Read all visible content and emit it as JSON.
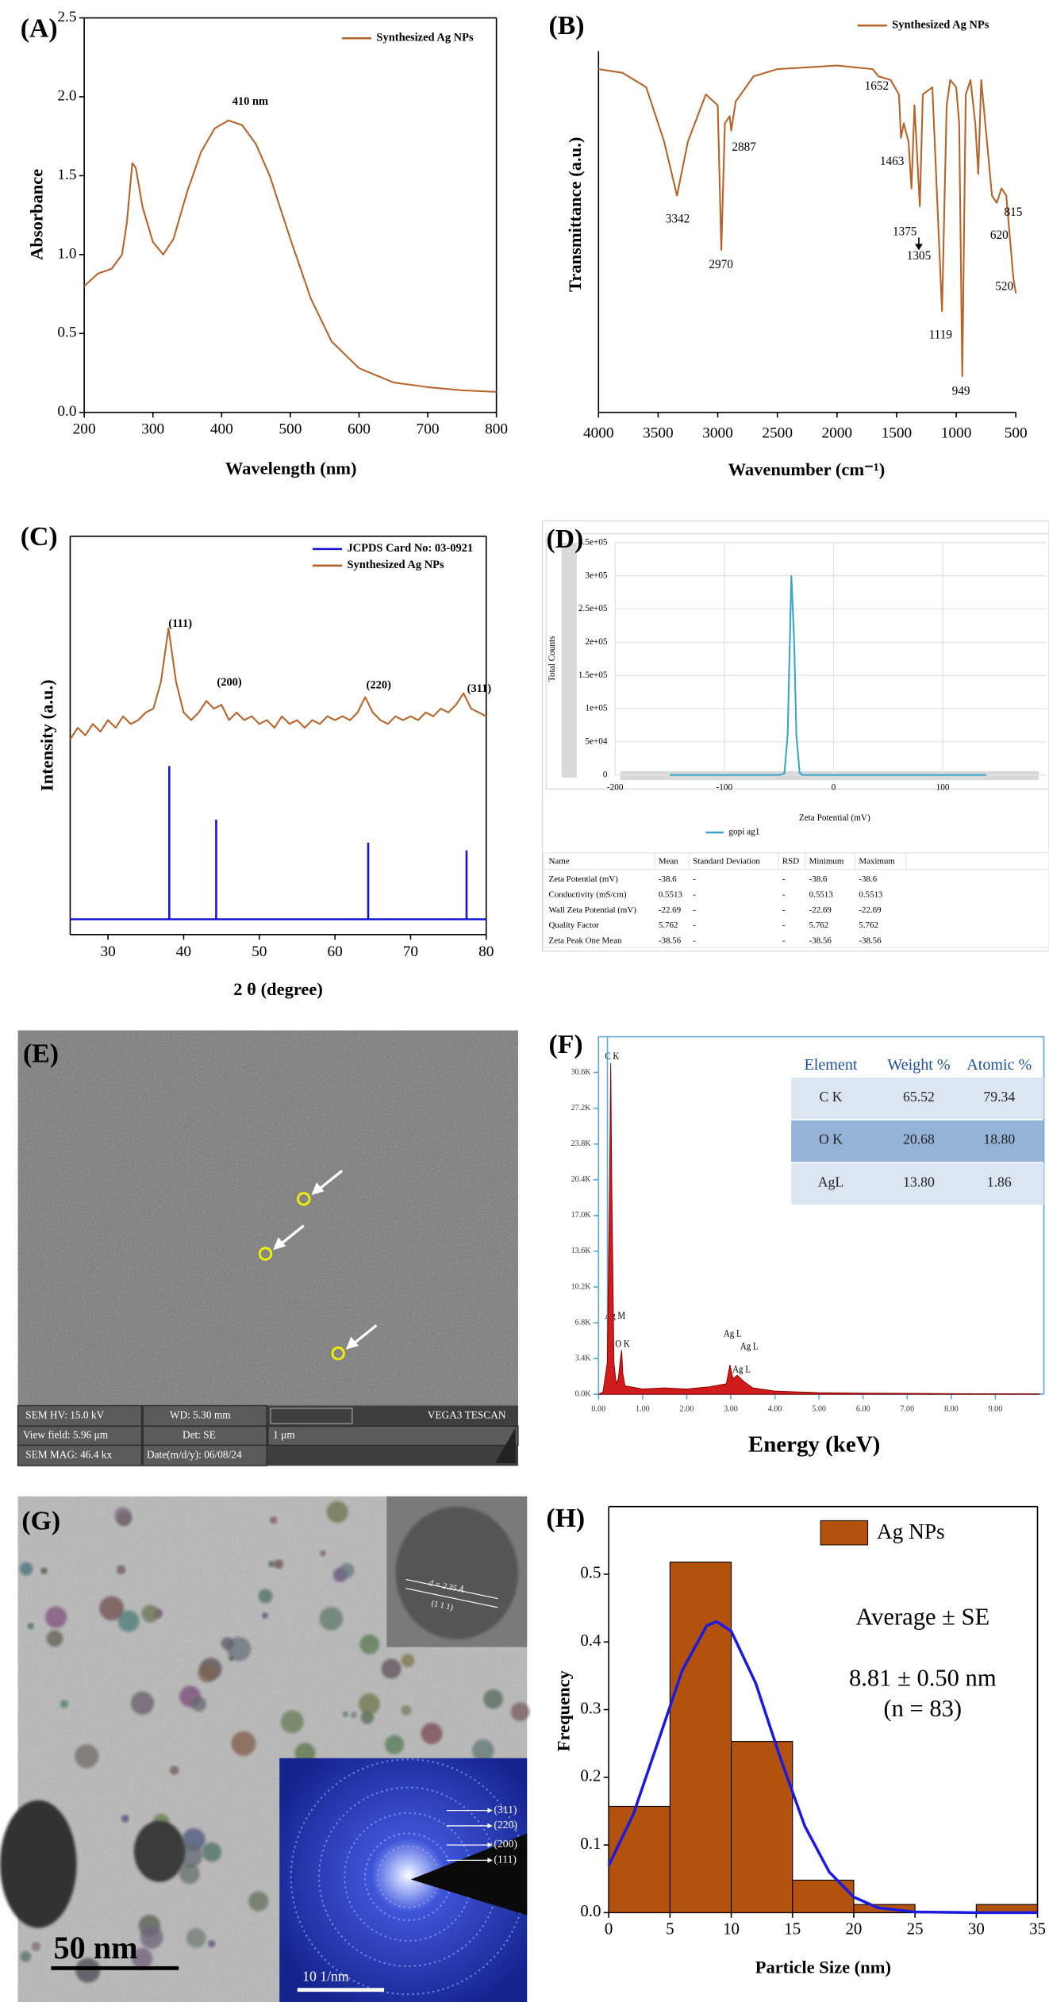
{
  "chart_data": [
    {
      "type": "line",
      "panel_label": "(A)",
      "xlabel": "Wavelength (nm)",
      "ylabel": "Absorbance",
      "annotations": [
        "410 nm"
      ],
      "x": [
        200,
        220,
        240,
        255,
        262,
        270,
        275,
        285,
        300,
        315,
        330,
        350,
        370,
        390,
        410,
        430,
        450,
        470,
        500,
        530,
        560,
        600,
        650,
        700,
        750,
        800
      ],
      "series": [
        {
          "name": "Synthesized Ag NPs",
          "color": "#b5652b",
          "values": [
            0.8,
            0.88,
            0.91,
            1.0,
            1.2,
            1.58,
            1.55,
            1.3,
            1.08,
            1.0,
            1.1,
            1.4,
            1.65,
            1.8,
            1.85,
            1.82,
            1.7,
            1.5,
            1.1,
            0.72,
            0.45,
            0.28,
            0.19,
            0.16,
            0.14,
            0.13
          ]
        }
      ],
      "xlim": [
        200,
        800
      ],
      "xticks": [
        200,
        300,
        400,
        500,
        600,
        700,
        800
      ],
      "ylim": [
        0,
        2.5
      ],
      "yticks": [
        {
          "value": 0,
          "label": "0.0"
        },
        0.5,
        {
          "value": 1,
          "label": "1.0"
        },
        1.5,
        {
          "value": 2,
          "label": "2.0"
        },
        2.5
      ]
    },
    {
      "type": "line",
      "panel_label": "(B)",
      "xlabel": "Wavenumber (cm⁻¹)",
      "ylabel": "Transmittance (a.u.)",
      "peaks": [
        3342,
        2970,
        2887,
        1652,
        1463,
        1375,
        1305,
        1119,
        949,
        815,
        620,
        520
      ],
      "x": [
        4000,
        3800,
        3600,
        3450,
        3342,
        3250,
        3100,
        3000,
        2970,
        2940,
        2900,
        2887,
        2850,
        2700,
        2500,
        2000,
        1700,
        1652,
        1550,
        1480,
        1463,
        1440,
        1400,
        1375,
        1350,
        1305,
        1280,
        1200,
        1119,
        1080,
        1050,
        1000,
        975,
        949,
        920,
        880,
        840,
        815,
        790,
        700,
        660,
        620,
        580,
        520,
        500
      ],
      "series": [
        {
          "name": "Synthesized Ag NPs",
          "color": "#b5652b",
          "values": [
            95,
            94,
            90,
            75,
            60,
            75,
            88,
            85,
            45,
            80,
            82,
            78,
            86,
            93,
            95,
            96,
            95,
            93,
            92,
            88,
            76,
            80,
            75,
            62,
            85,
            57,
            88,
            90,
            28,
            85,
            92,
            90,
            80,
            10,
            88,
            92,
            80,
            66,
            92,
            60,
            58,
            62,
            60,
            37,
            33
          ]
        }
      ],
      "xlim": [
        4000,
        500
      ],
      "xticks": [
        4000,
        3500,
        3000,
        2500,
        2000,
        1500,
        1000,
        500
      ],
      "ylim": [
        0,
        100
      ]
    },
    {
      "type": "line",
      "panel_label": "(C)",
      "xlabel": "2 θ (degree)",
      "ylabel": "Intensity (a.u.)",
      "annotations": [
        "(111)",
        "(200)",
        "(220)",
        "(311)"
      ],
      "series": [
        {
          "name": "JCPDS Card No: 03-0921",
          "color": "#1414d6",
          "mark": "stick",
          "x": [
            38.1,
            44.3,
            64.4,
            77.4
          ],
          "values": [
            40,
            26,
            20,
            18
          ]
        },
        {
          "name": "Synthesized Ag NPs",
          "color": "#b5652b",
          "x": [
            25,
            26,
            27,
            28,
            29,
            30,
            31,
            32,
            33,
            34,
            35,
            36,
            37,
            38,
            39,
            40,
            41,
            42,
            43,
            44,
            45,
            46,
            47,
            48,
            49,
            50,
            51,
            52,
            53,
            54,
            55,
            56,
            57,
            58,
            59,
            60,
            61,
            62,
            63,
            64,
            65,
            66,
            67,
            68,
            69,
            70,
            71,
            72,
            73,
            74,
            75,
            76,
            77,
            78,
            79,
            80
          ],
          "values": [
            47,
            50,
            48,
            51,
            49,
            52,
            50,
            53,
            51,
            52,
            54,
            55,
            62,
            76,
            62,
            54,
            52,
            54,
            57,
            55,
            56,
            52,
            54,
            52,
            53,
            51,
            52,
            50,
            53,
            51,
            52,
            50,
            52,
            51,
            53,
            52,
            53,
            52,
            54,
            58,
            54,
            52,
            51,
            53,
            52,
            53,
            52,
            54,
            53,
            55,
            54,
            56,
            59,
            55,
            54,
            53
          ]
        }
      ],
      "xlim": [
        25,
        80
      ],
      "xticks": [
        30,
        40,
        50,
        60,
        70,
        80
      ],
      "ylim": [
        -4,
        100
      ]
    },
    {
      "type": "line",
      "panel_label": "(D)",
      "xlabel": "Zeta Potential (mV)",
      "ylabel": "Total Counts",
      "grid": true,
      "x": [
        -150,
        -50,
        -45,
        -42,
        -40,
        -38.6,
        -36,
        -34,
        -31,
        -28,
        140
      ],
      "series": [
        {
          "name": "gopi ag1",
          "color": "#3aa6c8",
          "values": [
            0,
            0,
            2000,
            60000,
            200000,
            300000,
            200000,
            60000,
            3000,
            0,
            0
          ]
        }
      ],
      "xlim": [
        -200,
        195
      ],
      "xticks": [
        -200,
        -100,
        0,
        100
      ],
      "ylim": [
        0,
        350000
      ],
      "yticks": [
        0,
        {
          "value": 50000,
          "label": "5e+04"
        },
        {
          "value": 100000,
          "label": "1e+05"
        },
        {
          "value": 150000,
          "label": "1.5e+05"
        },
        {
          "value": 200000,
          "label": "2e+05"
        },
        {
          "value": 250000,
          "label": "2.5e+05"
        },
        {
          "value": 300000,
          "label": "3e+05"
        },
        {
          "value": 350000,
          "label": "3.5e+05"
        }
      ],
      "table": {
        "columns": [
          "Name",
          "Mean",
          "Standard Deviation",
          "RSD",
          "Minimum",
          "Maximum"
        ],
        "rows": [
          [
            "Zeta Potential (mV)",
            "-38.6",
            "-",
            "-",
            "-38.6",
            "-38.6"
          ],
          [
            "Conductivity (mS/cm)",
            "0.5513",
            "-",
            "-",
            "0.5513",
            "0.5513"
          ],
          [
            "Wall Zeta Potential (mV)",
            "-22.69",
            "-",
            "-",
            "-22.69",
            "-22.69"
          ],
          [
            "Quality Factor",
            "5.762",
            "-",
            "-",
            "5.762",
            "5.762"
          ],
          [
            "Zeta Peak One Mean",
            "-38.56",
            "-",
            "-",
            "-38.56",
            "-38.56"
          ]
        ]
      }
    },
    {
      "type": "area",
      "panel_label": "(F)",
      "xlabel": "Energy (keV)",
      "annotations": [
        "C K",
        "Ag M",
        "O K",
        "Ag L",
        "Ag L",
        "Ag L"
      ],
      "x": [
        0,
        0.1,
        0.2,
        0.25,
        0.277,
        0.3,
        0.35,
        0.4,
        0.45,
        0.5,
        0.525,
        0.55,
        0.6,
        1,
        1.5,
        2,
        2.5,
        2.9,
        2.98,
        3.05,
        3.15,
        3.3,
        3.5,
        4,
        5,
        6,
        7,
        8,
        9,
        10
      ],
      "series": [
        {
          "color": "#d01c1c",
          "values": [
            0,
            200,
            3000,
            20000,
            31500,
            20000,
            3000,
            1000,
            1500,
            3500,
            4200,
            2000,
            800,
            500,
            600,
            500,
            700,
            1000,
            2800,
            1500,
            1800,
            1200,
            600,
            300,
            150,
            100,
            80,
            60,
            50,
            40
          ]
        }
      ],
      "xlim": [
        0,
        10.1
      ],
      "xticks": [
        {
          "value": 0,
          "label": "0.00"
        },
        {
          "value": 1,
          "label": "1.00"
        },
        {
          "value": 2,
          "label": "2.00"
        },
        {
          "value": 3,
          "label": "3.00"
        },
        {
          "value": 4,
          "label": "4.00"
        },
        {
          "value": 5,
          "label": "5.00"
        },
        {
          "value": 6,
          "label": "6.00"
        },
        {
          "value": 7,
          "label": "7.00"
        },
        {
          "value": 8,
          "label": "8.00"
        },
        {
          "value": 9,
          "label": "9.00"
        }
      ],
      "ylim": [
        0,
        34000
      ],
      "yticks": [
        {
          "value": 0,
          "label": "0.0K"
        },
        {
          "value": 3400,
          "label": "3.4K"
        },
        {
          "value": 6800,
          "label": "6.8K"
        },
        {
          "value": 10200,
          "label": "10.2K"
        },
        {
          "value": 13600,
          "label": "13.6K"
        },
        {
          "value": 17000,
          "label": "17.0K"
        },
        {
          "value": 20400,
          "label": "20.4K"
        },
        {
          "value": 23800,
          "label": "23.8K"
        },
        {
          "value": 27200,
          "label": "27.2K"
        },
        {
          "value": 30600,
          "label": "30.6K"
        }
      ],
      "table": {
        "columns": [
          "Element",
          "Weight %",
          "Atomic %"
        ],
        "rows": [
          [
            "C K",
            "65.52",
            "79.34"
          ],
          [
            "O K",
            "20.68",
            "18.80"
          ],
          [
            "AgL",
            "13.80",
            "1.86"
          ]
        ]
      }
    },
    {
      "type": "histogram",
      "panel_label": "(H)",
      "xlabel": "Particle Size (nm)",
      "ylabel": "Frequency",
      "name": "Ag NPs",
      "color": "#b3520d",
      "annotations": [
        "Average ± SE",
        "8.81 ± 0.50 nm",
        "(n = 83)"
      ],
      "bins": [
        0,
        5,
        10,
        15,
        20,
        25,
        30,
        35
      ],
      "values": [
        0.157,
        0.518,
        0.253,
        0.048,
        0.012,
        0,
        0.012
      ],
      "fit": {
        "color": "#1a1ae0",
        "x": [
          0,
          2,
          4,
          6,
          8,
          8.81,
          10,
          12,
          14,
          16,
          18,
          20,
          22,
          25,
          30,
          35
        ],
        "values": [
          0.07,
          0.145,
          0.251,
          0.358,
          0.424,
          0.43,
          0.416,
          0.339,
          0.229,
          0.128,
          0.06,
          0.023,
          0.007,
          0.001,
          0,
          0
        ]
      },
      "xlim": [
        0,
        35
      ],
      "xticks": [
        0,
        5,
        10,
        15,
        20,
        25,
        30,
        35
      ],
      "ylim": [
        0,
        0.6
      ],
      "yticks": [
        {
          "value": 0,
          "label": "0.0"
        },
        0.1,
        0.2,
        0.3,
        0.4,
        0.5
      ]
    }
  ],
  "sem_image": {
    "panel_label": "(E)",
    "info": [
      "SEM HV: 15.0 kV",
      "WD: 5.30 mm",
      "VEGA3 TESCAN",
      "View field: 5.96 μm",
      "Det: SE",
      "1 μm",
      "SEM MAG: 46.4 kx",
      "Date(m/d/y): 06/08/24"
    ]
  },
  "tem_image": {
    "panel_label": "(G)",
    "lattice": "d = 2.35 Å",
    "plane": "(1 1 1)",
    "rings": [
      "(311)",
      "(220)",
      "(200)",
      "(111)"
    ],
    "scale_bar": "50 nm",
    "saed_scale": "10 1/nm"
  }
}
